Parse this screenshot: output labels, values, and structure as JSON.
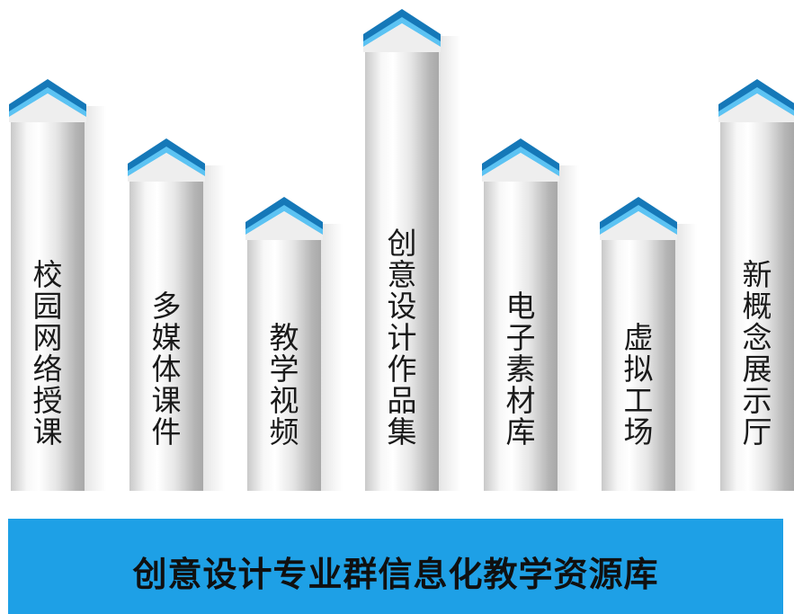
{
  "colors": {
    "accent": "#1ea0e6",
    "cap_dark": "#1578b8",
    "cap_light": "#5cc3f3",
    "text": "#101010"
  },
  "pillars": [
    {
      "label": "校园网络授课"
    },
    {
      "label": "多媒体课件"
    },
    {
      "label": "教学视频"
    },
    {
      "label": "创意设计作品集"
    },
    {
      "label": "电子素材库"
    },
    {
      "label": "虚拟工场"
    },
    {
      "label": "新概念展示厅"
    }
  ],
  "base": {
    "title": "创意设计专业群信息化教学资源库"
  }
}
